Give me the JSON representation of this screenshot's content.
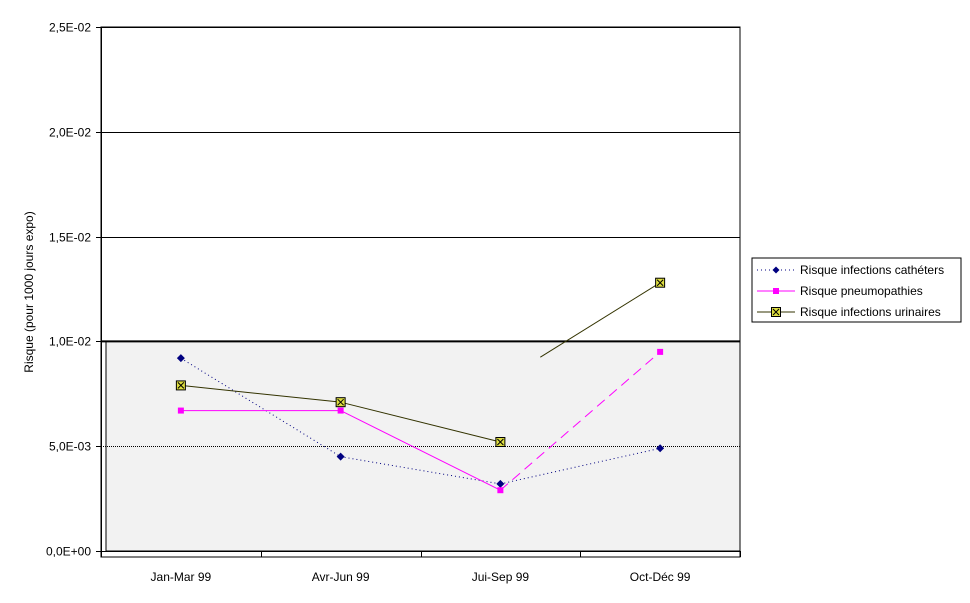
{
  "chart_data": {
    "type": "line",
    "title": "",
    "xlabel": "",
    "ylabel": "Risque (pour 1000 jours expo)",
    "categories": [
      "Jan-Mar 99",
      "Avr-Jun 99",
      "Jui-Sep 99",
      "Oct-Déc 99"
    ],
    "ylim": [
      0,
      0.025
    ],
    "yticks": [
      0,
      0.005,
      0.01,
      0.015,
      0.02,
      0.025
    ],
    "ytick_labels": [
      "0,0E+00",
      "5,0E-03",
      "1,0E-02",
      "1,5E-02",
      "2,0E-02",
      "2,5E-02"
    ],
    "grid": true,
    "shaded_band": [
      0,
      0.01
    ],
    "legend_position": "right",
    "series": [
      {
        "name": "Risque infections cathéters",
        "values": [
          0.0092,
          0.0045,
          0.0032,
          0.0049
        ],
        "color": "#000080",
        "marker": "diamond",
        "dash": "dotted"
      },
      {
        "name": "Risque pneumopathies",
        "values": [
          0.0067,
          0.0067,
          0.0029,
          0.0095
        ],
        "color": "#ff00ff",
        "marker": "square",
        "dash": "solid"
      },
      {
        "name": "Risque infections urinaires",
        "values": [
          0.0079,
          0.0071,
          0.0052,
          0.0128
        ],
        "color": "#333300",
        "marker": "box-x",
        "dash": "solid"
      }
    ]
  }
}
